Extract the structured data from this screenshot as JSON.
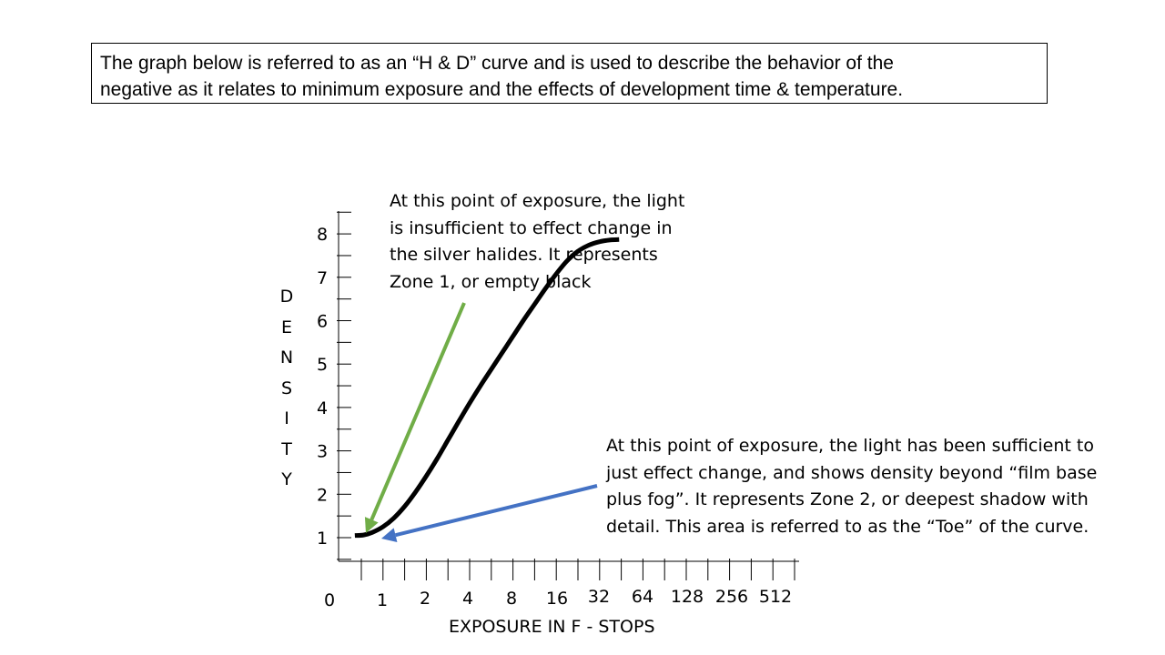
{
  "intro": {
    "lines": [
      "The graph below is referred to as an “H & D” curve and is used to describe the behavior of the",
      "negative as it relates to minimum exposure and the effects of development time & temperature."
    ]
  },
  "annotations": {
    "zone1": {
      "lines": [
        "At this point of exposure, the light",
        "is insufficient to effect change in",
        "the silver halides.  It represents",
        "Zone 1, or empty black"
      ],
      "arrow_color": "#70ad47"
    },
    "zone2": {
      "lines": [
        "At this point of exposure, the light has been sufficient to",
        "just effect change, and shows density beyond “film base",
        "plus fog”.  It represents Zone 2, or deepest shadow with",
        "detail.  This area is referred to as the “Toe” of the curve."
      ],
      "arrow_color": "#4472c4"
    }
  },
  "chart_data": {
    "type": "line",
    "xlabel": "EXPOSURE IN F - STOPS",
    "ylabel_letters": [
      "D",
      "E",
      "N",
      "S",
      "I",
      "T",
      "Y"
    ],
    "x_tick_labels": [
      "0",
      "1",
      "2",
      "4",
      "8",
      "16",
      "32",
      "64",
      "128",
      "256",
      "512"
    ],
    "y_tick_labels": [
      "1",
      "2",
      "3",
      "4",
      "5",
      "6",
      "7",
      "8"
    ],
    "ylim": [
      0.5,
      8.5
    ],
    "grid": false,
    "curve_color": "#000000",
    "series": [
      {
        "x_stops": [
          -0.3,
          0.1,
          0.5,
          1.0,
          1.5,
          2.0,
          2.5,
          3.0,
          3.5,
          4.0,
          4.5,
          5.0,
          5.5,
          6.0,
          6.5,
          7.0,
          7.5,
          8.0,
          8.5,
          9.0,
          9.5,
          10.0,
          10.5,
          11.0,
          11.5,
          11.9
        ],
        "values": [
          1.05,
          1.06,
          1.12,
          1.25,
          1.45,
          1.72,
          2.05,
          2.42,
          2.82,
          3.25,
          3.68,
          4.1,
          4.5,
          4.88,
          5.26,
          5.64,
          6.02,
          6.38,
          6.74,
          7.08,
          7.38,
          7.6,
          7.74,
          7.82,
          7.86,
          7.87
        ]
      }
    ]
  }
}
